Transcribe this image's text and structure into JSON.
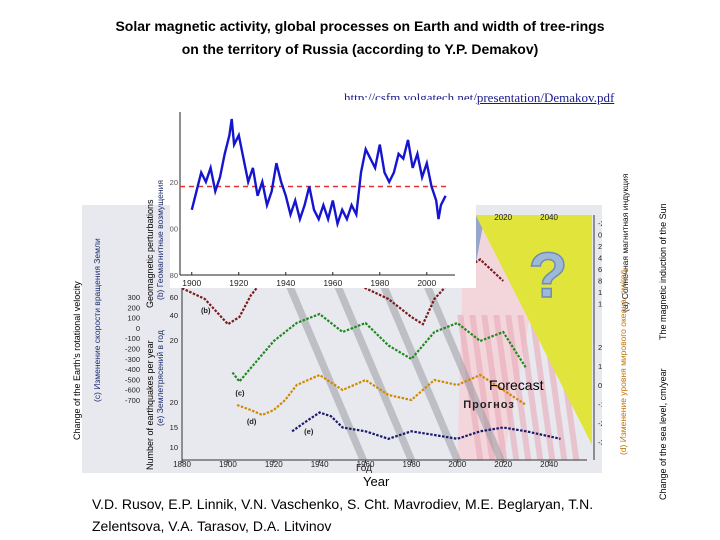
{
  "header": {
    "title_line1": "Solar magnetic activity, global processes on Earth and width of tree-rings",
    "title_line2": "on the territory of Russia (according to Y.P. Demakov)",
    "source_link": "http://csfm.volgatech.net/presentation/Demakov.pdf"
  },
  "labels": {
    "earth_rotation": "Change of the Earth's rotational velocity",
    "geomagnetic": "Geomagnetic perturbations",
    "earthquakes": "Number of earthquakes per year",
    "sun_induction": "The magnetic induction of the Sun",
    "sea_level": "Change of the sea level, cm/year",
    "forecast_en": "Forecast",
    "year_en": "Year"
  },
  "ru_labels": {
    "earth_rotation": "(с) Изменение скорости вращения Земли",
    "geomagnetic": "(b) Геомагнитные возмущения",
    "earthquakes": "(e) Землетрясений в год",
    "sun_induction": "(а) Солнечная магнитная индукция",
    "sea_level": "(d) Изменение уровня мирового океана, см/год",
    "forecast": "Прогноз",
    "year": "Год",
    "question": "?"
  },
  "authors": "V.D. Rusov, E.P. Linnik, V.N. Vaschenko, S. Cht. Mavrodiev, M.E. Beglaryan, T.N. Zelentsova, V.A. Tarasov, D.A. Litvinov",
  "chart_data": [
    {
      "type": "line",
      "title": "",
      "xlabel": "Год",
      "xlim": [
        1880,
        2050
      ],
      "x_ticks": [
        "1880",
        "1900",
        "1920",
        "1940",
        "1960",
        "1980",
        "2000",
        "2020",
        "2040"
      ],
      "top_right_ticks": [
        "2000",
        "2020",
        "2040"
      ],
      "left_ticks_c": [
        "300",
        "200",
        "100",
        "0",
        "-100",
        "-200",
        "-300",
        "-400",
        "-500",
        "-600",
        "-700"
      ],
      "left_ticks_e": [
        "60",
        "40",
        "20",
        "20",
        "15",
        "10"
      ],
      "right_ticks_a": [
        "-20",
        "0",
        "20",
        "40",
        "60",
        "80",
        "100",
        "120"
      ],
      "right_ticks_d": [
        "2",
        "1",
        "0",
        "-1",
        "-2",
        "-3"
      ],
      "curve_labels": [
        "(b)",
        "(c)",
        "(d)",
        "(e)"
      ],
      "series": [
        {
          "name": "(b)",
          "color": "#7a1a1a",
          "x": [
            1880,
            1890,
            1900,
            1905,
            1910,
            1920,
            1930,
            1940,
            1950,
            1960,
            1970,
            1980,
            1985,
            1990,
            2000,
            2010,
            2020
          ],
          "y": [
            38,
            35,
            28,
            30,
            36,
            44,
            49,
            43,
            45,
            38,
            35,
            30,
            28,
            35,
            42,
            46,
            40
          ]
        },
        {
          "name": "(c)",
          "color": "#1e8a1e",
          "x": [
            1902,
            1905,
            1910,
            1920,
            1930,
            1940,
            1950,
            1960,
            1970,
            1980,
            1990,
            2000,
            2010,
            2020,
            2030
          ],
          "y": [
            15,
            13,
            16,
            22,
            26,
            28,
            24,
            26,
            21,
            18,
            24,
            26,
            22,
            24,
            16
          ]
        },
        {
          "name": "(d)",
          "color": "#d08a00",
          "x": [
            1904,
            1910,
            1915,
            1920,
            1925,
            1930,
            1940,
            1950,
            1960,
            1970,
            1980,
            1990,
            2000,
            2010,
            2020,
            2030
          ],
          "y": [
            4,
            3,
            2,
            3,
            5,
            8,
            10,
            7,
            9,
            6,
            5,
            9,
            8,
            10,
            7,
            4
          ]
        },
        {
          "name": "(e)",
          "color": "#1a1a6a",
          "x": [
            1928,
            1935,
            1940,
            1945,
            1950,
            1960,
            1970,
            1980,
            1990,
            2000,
            2010,
            2020,
            2030,
            2045
          ],
          "y": [
            5,
            8,
            10,
            9,
            6,
            5,
            3,
            5,
            4,
            3,
            5,
            6,
            5,
            3
          ]
        }
      ]
    },
    {
      "type": "line",
      "title": "",
      "xlim": [
        1895,
        2012
      ],
      "ylim": [
        80,
        150
      ],
      "x_ticks": [
        "1900",
        "1920",
        "1940",
        "1960",
        "1980",
        "2000"
      ],
      "y_ticks": [
        "120",
        "100",
        "80"
      ],
      "reference_level": 118,
      "series": [
        {
          "name": "",
          "color": "#1515d0",
          "x": [
            1900,
            1902,
            1904,
            1906,
            1908,
            1910,
            1912,
            1914,
            1916,
            1917,
            1918,
            1920,
            1922,
            1924,
            1926,
            1928,
            1930,
            1932,
            1934,
            1936,
            1938,
            1940,
            1942,
            1944,
            1946,
            1948,
            1950,
            1952,
            1954,
            1956,
            1958,
            1960,
            1962,
            1964,
            1966,
            1968,
            1970,
            1972,
            1974,
            1976,
            1978,
            1980,
            1982,
            1984,
            1986,
            1988,
            1990,
            1992,
            1994,
            1996,
            1998,
            2000,
            2002,
            2004,
            2005,
            2006,
            2008
          ],
          "y": [
            108,
            116,
            124,
            120,
            126,
            116,
            122,
            132,
            140,
            147,
            136,
            140,
            130,
            120,
            126,
            114,
            120,
            110,
            116,
            128,
            120,
            114,
            106,
            112,
            104,
            110,
            118,
            108,
            104,
            110,
            104,
            112,
            102,
            108,
            104,
            110,
            106,
            124,
            134,
            130,
            126,
            136,
            124,
            120,
            124,
            132,
            130,
            138,
            126,
            132,
            122,
            128,
            118,
            112,
            104,
            110,
            114
          ]
        }
      ]
    }
  ]
}
